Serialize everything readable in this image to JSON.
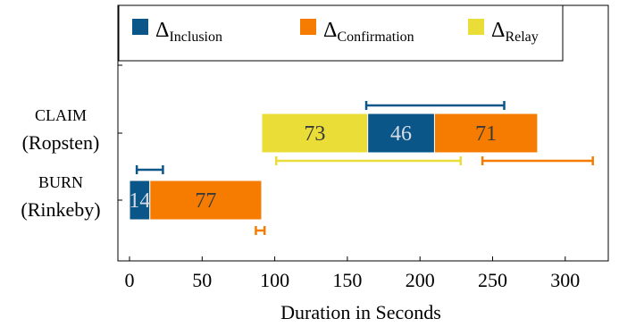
{
  "chart_data": {
    "type": "bar",
    "orientation": "horizontal",
    "stacked": true,
    "xlabel": "Duration in Seconds",
    "xlim": [
      -7,
      326
    ],
    "xticks": [
      0,
      50,
      100,
      150,
      200,
      250,
      300
    ],
    "categories": [
      {
        "name": "CLAIM",
        "sub": "(Ropsten)"
      },
      {
        "name": "BURN",
        "sub": "(Rinkeby)"
      }
    ],
    "legend": {
      "placement": "top",
      "entries": [
        {
          "symbol": "Δ",
          "sub": "Inclusion",
          "color": "#0b5689"
        },
        {
          "symbol": "Δ",
          "sub": "Confirmation",
          "color": "#f57c00"
        },
        {
          "symbol": "Δ",
          "sub": "Relay",
          "color": "#ebdd38"
        }
      ]
    },
    "bars": [
      {
        "category": "CLAIM",
        "segments": [
          {
            "series": "Relay",
            "start": 91,
            "value": 73,
            "label": "73"
          },
          {
            "series": "Inclusion",
            "start": 164,
            "value": 46,
            "label": "46"
          },
          {
            "series": "Confirmation",
            "start": 210,
            "value": 71,
            "label": "71"
          }
        ],
        "error_ranges": [
          {
            "series": "Inclusion",
            "from": 163,
            "to": 258
          },
          {
            "series": "Relay",
            "from": 101,
            "to": 228
          },
          {
            "series": "Confirmation",
            "from": 243,
            "to": 319
          }
        ]
      },
      {
        "category": "BURN",
        "segments": [
          {
            "series": "Inclusion",
            "start": 0,
            "value": 14,
            "label": "14"
          },
          {
            "series": "Confirmation",
            "start": 14,
            "value": 77,
            "label": "77"
          }
        ],
        "error_ranges": [
          {
            "series": "Inclusion",
            "from": 5,
            "to": 23
          },
          {
            "series": "Confirmation",
            "from": 87,
            "to": 93
          }
        ]
      }
    ],
    "colors": {
      "Inclusion": "#0b5689",
      "Confirmation": "#f57c00",
      "Relay": "#ebdd38"
    }
  }
}
